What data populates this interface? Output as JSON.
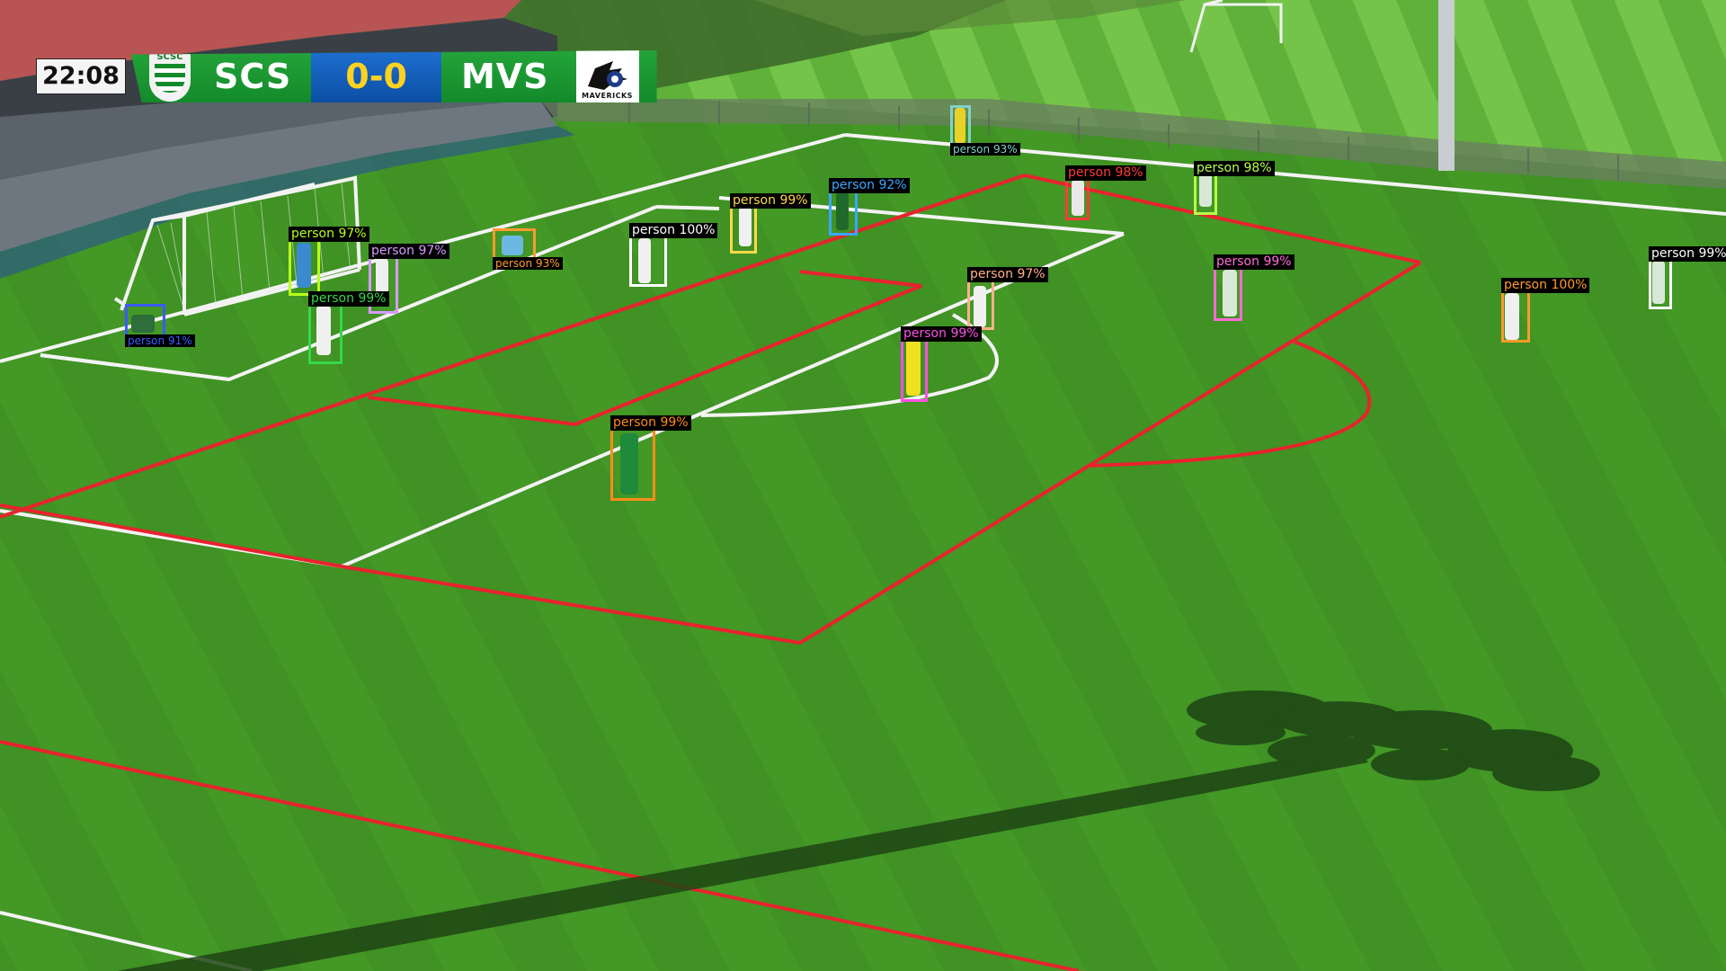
{
  "scoreboard": {
    "clock": "22:08",
    "home_crest_text": "SCSC",
    "home_team": "SCS",
    "score": "0-0",
    "away_team": "MVS",
    "away_logo_text": "MAVERICKS"
  },
  "detections": [
    {
      "label": "person 93%",
      "color": "#7fd3c7"
    },
    {
      "label": "person 98%",
      "color": "#ff3b3b"
    },
    {
      "label": "person 98%",
      "color": "#b7ff4a"
    },
    {
      "label": "person 92%",
      "color": "#3aa7ff"
    },
    {
      "label": "person 99%",
      "color": "#ffd84a"
    },
    {
      "label": "person 100%",
      "color": "#ffffff"
    },
    {
      "label": "person 93%",
      "color": "#ff9a2e"
    },
    {
      "label": "person 97%",
      "color": "#b9ff1a"
    },
    {
      "label": "person 97%",
      "color": "#d79bff"
    },
    {
      "label": "person 99%",
      "color": "#35d84a"
    },
    {
      "label": "person 91%",
      "color": "#3b5bff"
    },
    {
      "label": "person 97%",
      "color": "#ffb18a"
    },
    {
      "label": "person 99%",
      "color": "#ff6ad5"
    },
    {
      "label": "person 99%",
      "color": "#ff4fe6"
    },
    {
      "label": "person 100%",
      "color": "#ff9a2e"
    },
    {
      "label": "person 99%",
      "color": "#ffffff"
    },
    {
      "label": "person 99%",
      "color": "#ff8c1a"
    }
  ]
}
